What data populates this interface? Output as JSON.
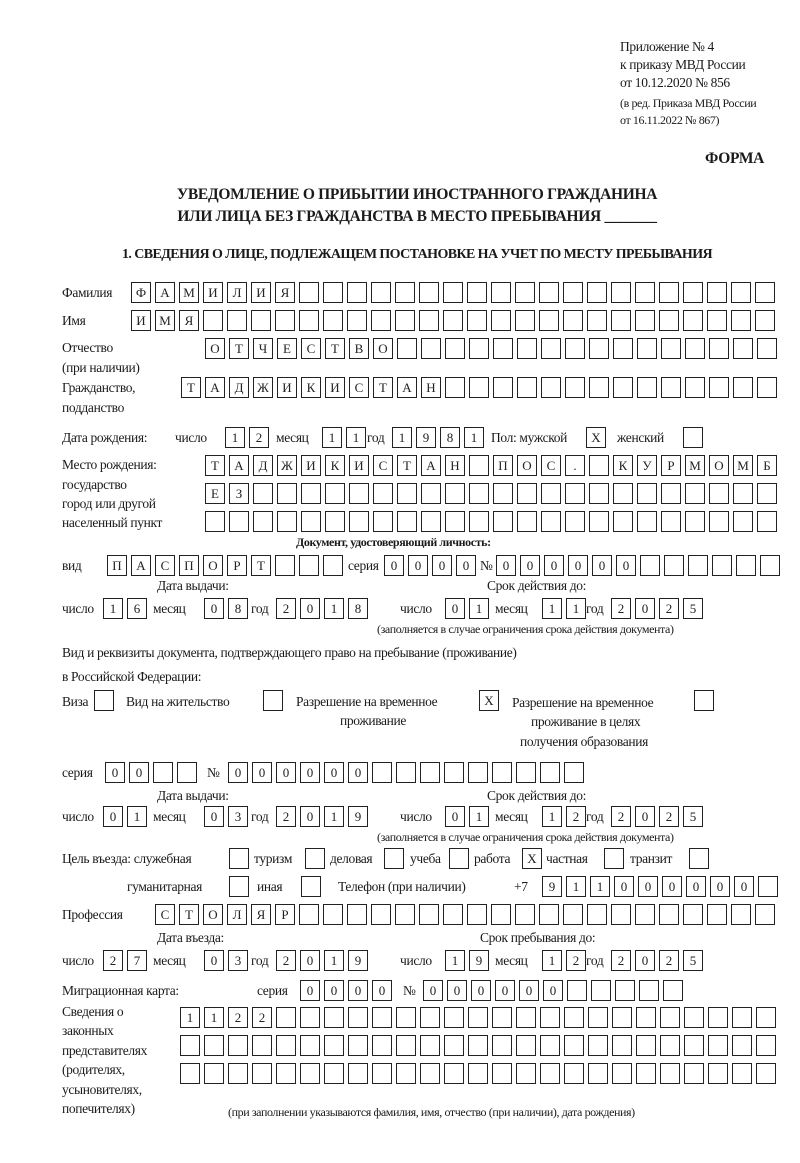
{
  "header": {
    "appendix": [
      "Приложение № 4",
      "к приказу МВД России",
      "от 10.12.2020 № 856"
    ],
    "revision": [
      "(в ред. Приказа МВД России",
      "от 16.11.2022 № 867)"
    ],
    "form_label": "ФОРМА",
    "title_line1": "УВЕДОМЛЕНИЕ О ПРИБЫТИИ ИНОСТРАННОГО ГРАЖДАНИНА",
    "title_line2": "ИЛИ ЛИЦА БЕЗ ГРАЖДАНСТВА В МЕСТО ПРЕБЫВАНИЯ _______"
  },
  "section1": {
    "heading": "1. СВЕДЕНИЯ О ЛИЦЕ, ПОДЛЕЖАЩЕМ ПОСТАНОВКЕ НА УЧЕТ ПО МЕСТУ ПРЕБЫВАНИЯ",
    "surname": {
      "label": "Фамилия",
      "chars": [
        "Ф",
        "А",
        "М",
        "И",
        "Л",
        "И",
        "Я"
      ]
    },
    "name": {
      "label": "Имя",
      "chars": [
        "И",
        "М",
        "Я"
      ]
    },
    "patronymic": {
      "label": "Отчество",
      "sublabel": "(при наличии)",
      "chars": [
        "О",
        "Т",
        "Ч",
        "Е",
        "С",
        "Т",
        "В",
        "О"
      ]
    },
    "citizenship": {
      "label": "Гражданство,",
      "sublabel": "подданство",
      "chars": [
        "Т",
        "А",
        "Д",
        "Ж",
        "И",
        "К",
        "И",
        "С",
        "Т",
        "А",
        "Н"
      ]
    },
    "birth_date": {
      "label": "Дата рождения:",
      "day_label": "число",
      "day": [
        "1",
        "2"
      ],
      "month_label": "месяц",
      "month": [
        "1",
        "1"
      ],
      "year_label": "год",
      "year": [
        "1",
        "9",
        "8",
        "1"
      ],
      "sex_label": "Пол: мужской",
      "male": [
        "X"
      ],
      "female_label": "женский",
      "female": []
    },
    "birth_place": {
      "labels": [
        "Место рождения:",
        "государство",
        "город или другой",
        "населенный пункт"
      ],
      "row1": [
        "Т",
        "А",
        "Д",
        "Ж",
        "И",
        "К",
        "И",
        "С",
        "Т",
        "А",
        "Н",
        "",
        "П",
        "О",
        "С",
        ".",
        "",
        "К",
        "У",
        "Р",
        "М",
        "О",
        "М",
        "Б"
      ],
      "row2": [
        "Е",
        "З"
      ],
      "row3": []
    },
    "identity_doc": {
      "heading": "Документ, удостоверяющий личность:",
      "type_label": "вид",
      "type": [
        "П",
        "А",
        "С",
        "П",
        "О",
        "Р",
        "Т"
      ],
      "series_label": "серия",
      "series": [
        "0",
        "0",
        "0",
        "0"
      ],
      "number_label": "№",
      "number": [
        "0",
        "0",
        "0",
        "0",
        "0",
        "0"
      ],
      "issue_label": "Дата выдачи:",
      "valid_label": "Срок действия до:",
      "issue": {
        "day_label": "число",
        "day": [
          "1",
          "6"
        ],
        "month_label": "месяц",
        "month": [
          "0",
          "8"
        ],
        "year_label": "год",
        "year": [
          "2",
          "0",
          "1",
          "8"
        ]
      },
      "valid": {
        "day_label": "число",
        "day": [
          "0",
          "1"
        ],
        "month_label": "месяц",
        "month": [
          "1",
          "1"
        ],
        "year_label": "год",
        "year": [
          "2",
          "0",
          "2",
          "5"
        ]
      },
      "note": "(заполняется в случае ограничения срока действия документа)"
    },
    "residence_doc": {
      "heading_line1": "Вид и реквизиты документа, подтверждающего право на пребывание (проживание)",
      "heading_line2": "в Российской Федерации:",
      "visa_label": "Виза",
      "visa": [],
      "residence_permit_label": "Вид на жительство",
      "residence_permit": [],
      "temp_permit_label1": "Разрешение на временное",
      "temp_permit_label2": "проживание",
      "temp_permit": [
        "X"
      ],
      "edu_permit_label1": "Разрешение на временное",
      "edu_permit_label2": "проживание в целях",
      "edu_permit_label3": "получения образования",
      "edu_permit": [],
      "series_label": "серия",
      "series": [
        "0",
        "0"
      ],
      "number_label": "№",
      "number": [
        "0",
        "0",
        "0",
        "0",
        "0",
        "0"
      ],
      "issue_label": "Дата выдачи:",
      "valid_label": "Срок действия до:",
      "issue": {
        "day_label": "число",
        "day": [
          "0",
          "1"
        ],
        "month_label": "месяц",
        "month": [
          "0",
          "3"
        ],
        "year_label": "год",
        "year": [
          "2",
          "0",
          "1",
          "9"
        ]
      },
      "valid": {
        "day_label": "число",
        "day": [
          "0",
          "1"
        ],
        "month_label": "месяц",
        "month": [
          "1",
          "2"
        ],
        "year_label": "год",
        "year": [
          "2",
          "0",
          "2",
          "5"
        ]
      },
      "note": "(заполняется в случае ограничения срока действия документа)"
    },
    "purpose": {
      "label": "Цель въезда: служебная",
      "official": [],
      "tourism_label": "туризм",
      "tourism": [],
      "business_label": "деловая",
      "business": [],
      "study_label": "учеба",
      "study": [],
      "work_label": "работа",
      "work": [
        "X"
      ],
      "private_label": "частная",
      "private": [],
      "transit_label": "транзит",
      "transit": [],
      "humanitarian_label": "гуманитарная",
      "humanitarian": [],
      "other_label": "иная",
      "other": []
    },
    "phone": {
      "label": "Телефон (при наличии)",
      "prefix": "+7",
      "chars": [
        "9",
        "1",
        "1",
        "0",
        "0",
        "0",
        "0",
        "0",
        "0"
      ]
    },
    "profession": {
      "label": "Профессия",
      "chars": [
        "С",
        "Т",
        "О",
        "Л",
        "Я",
        "Р"
      ]
    },
    "entry": {
      "entry_label": "Дата въезда:",
      "stay_label": "Срок пребывания до:",
      "entry_date": {
        "day_label": "число",
        "day": [
          "2",
          "7"
        ],
        "month_label": "месяц",
        "month": [
          "0",
          "3"
        ],
        "year_label": "год",
        "year": [
          "2",
          "0",
          "1",
          "9"
        ]
      },
      "stay_until": {
        "day_label": "число",
        "day": [
          "1",
          "9"
        ],
        "month_label": "месяц",
        "month": [
          "1",
          "2"
        ],
        "year_label": "год",
        "year": [
          "2",
          "0",
          "2",
          "5"
        ]
      }
    },
    "migration_card": {
      "label": "Миграционная карта:",
      "series_label": "серия",
      "series": [
        "0",
        "0",
        "0",
        "0"
      ],
      "number_label": "№",
      "number": [
        "0",
        "0",
        "0",
        "0",
        "0",
        "0"
      ]
    },
    "representatives": {
      "labels": [
        "Сведения о",
        "законных",
        "представителях",
        "(родителях,",
        "усыновителях,",
        "попечителях)"
      ],
      "row1": [
        "1",
        "1",
        "2",
        "2"
      ],
      "row2": [],
      "row3": [],
      "note": "(при заполнении указываются фамилия, имя, отчество (при наличии), дата рождения)"
    }
  }
}
